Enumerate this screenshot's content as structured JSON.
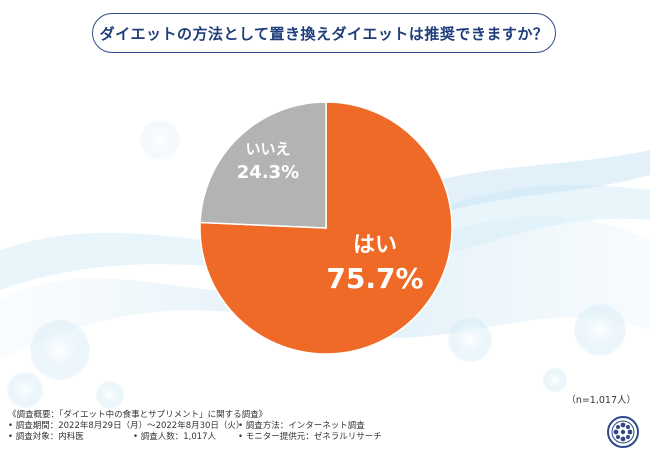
{
  "header": {
    "question": "ダイエットの方法として置き換えダイエットは推奨できますか？"
  },
  "chart_data": {
    "type": "pie",
    "title": "ダイエットの方法として置き換えダイエットは推奨できますか？",
    "slices": [
      {
        "label": "はい",
        "value": 75.7,
        "value_label": "75.7%",
        "color": "#ef6a26"
      },
      {
        "label": "いいえ",
        "value": 24.3,
        "value_label": "24.3%",
        "color": "#b3b3b3"
      }
    ],
    "start_angle": "12 o'clock",
    "direction": "clockwise"
  },
  "sample_size": "（n=1,017人）",
  "footer": {
    "survey_title": "《調査概要：「ダイエット中の食事とサプリメント」に関する調査》",
    "period": "• 調査期間：2022年8月29日（月）～2022年8月30日（火）",
    "method": "• 調査方法：インターネット調査",
    "target": "• 調査対象：内科医",
    "count": "• 調査人数：1,017人",
    "provider": "• モニター提供元：ゼネラルリサーチ"
  }
}
